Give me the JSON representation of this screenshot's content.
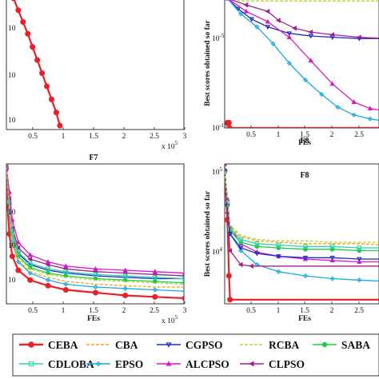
{
  "chart_data": [
    {
      "id": "top-left",
      "type": "line",
      "title": "",
      "xlabel": "",
      "ylabel": "",
      "x_multiplier": "x 10",
      "x_exponent": "5",
      "xticks": [
        "0.5",
        "1",
        "1.5",
        "2",
        "2.5",
        "3"
      ],
      "ytick_labels": [
        "10",
        "10",
        "10"
      ],
      "xlim": [
        0,
        3
      ],
      "series": [
        {
          "name": "CEBA",
          "color": "#e8202a",
          "marker": "circle",
          "x": [
            0.12,
            0.2,
            0.28,
            0.36,
            0.44,
            0.52,
            0.6,
            0.68,
            0.76,
            0.84,
            0.9
          ],
          "y": [
            0.0,
            0.09,
            0.18,
            0.27,
            0.37,
            0.47,
            0.57,
            0.67,
            0.77,
            0.87,
            0.97
          ]
        }
      ]
    },
    {
      "id": "top-right",
      "type": "line",
      "title": "F8",
      "xlabel": "FEs",
      "ylabel": "Best scores obtained so far",
      "xticks": [
        "0.5",
        "1",
        "1.5",
        "2",
        "2.5"
      ],
      "ytick_labels": [
        "10",
        "10"
      ],
      "ytick_exponents": [
        "-5",
        "-15"
      ],
      "xlim": [
        0,
        3
      ],
      "series": [
        {
          "name": "CEBA",
          "color": "#e8202a",
          "marker": "circle",
          "x": [
            0.05,
            0.08,
            0.09,
            3.0
          ],
          "y": [
            0.96,
            0.96,
            1.0,
            1.0
          ]
        },
        {
          "name": "CGPSO",
          "color": "#1f2bbf",
          "marker": "triangle-down",
          "x": [
            0.05,
            0.25,
            0.5,
            0.8,
            1.2,
            1.6,
            2.0,
            2.5,
            3.0
          ],
          "y": [
            0.0,
            0.08,
            0.16,
            0.22,
            0.27,
            0.29,
            0.3,
            0.31,
            0.31
          ]
        },
        {
          "name": "EPSO",
          "color": "#18a9df",
          "marker": "diamond",
          "x": [
            0.05,
            0.3,
            0.6,
            0.9,
            1.2,
            1.5,
            1.8,
            2.1,
            2.4,
            2.7,
            3.0
          ],
          "y": [
            0.0,
            0.12,
            0.22,
            0.35,
            0.5,
            0.63,
            0.74,
            0.84,
            0.9,
            0.93,
            0.95
          ]
        },
        {
          "name": "ALCPSO",
          "color": "#d61ac8",
          "marker": "triangle-up",
          "x": [
            0.05,
            0.4,
            0.8,
            1.2,
            1.6,
            2.0,
            2.4,
            2.7,
            3.0
          ],
          "y": [
            0.0,
            0.1,
            0.18,
            0.3,
            0.48,
            0.66,
            0.8,
            0.85,
            0.87
          ]
        },
        {
          "name": "CLPSO",
          "color": "#a2208f",
          "marker": "triangle-left",
          "x": [
            0.05,
            0.4,
            0.8,
            1.0,
            1.3,
            1.6,
            2.0,
            2.5,
            3.0
          ],
          "y": [
            0.0,
            0.05,
            0.1,
            0.17,
            0.23,
            0.26,
            0.28,
            0.3,
            0.31
          ]
        },
        {
          "name": "RCBA",
          "color": "#b5d23b",
          "marker": "none",
          "x": [
            0.05,
            0.3,
            0.8,
            1.5,
            2.2,
            3.0
          ],
          "y": [
            0.0,
            0.02,
            0.02,
            0.02,
            0.02,
            0.02
          ]
        }
      ]
    },
    {
      "id": "bottom-left",
      "type": "line",
      "title": "F7",
      "xlabel": "FEs",
      "ylabel": "",
      "x_multiplier": "x 10",
      "x_exponent": "5",
      "xticks": [
        "0.5",
        "1",
        "1.5",
        "2",
        "2.5",
        "3"
      ],
      "ytick_labels": [
        "10",
        "10",
        "10"
      ],
      "xlim": [
        0,
        3
      ],
      "series": [
        {
          "name": "CEBA",
          "color": "#e8202a",
          "marker": "circle",
          "x": [
            0.0,
            0.05,
            0.1,
            0.2,
            0.4,
            0.7,
            1.0,
            1.5,
            2.0,
            2.5,
            3.0
          ],
          "y": [
            0.18,
            0.5,
            0.66,
            0.76,
            0.83,
            0.87,
            0.9,
            0.92,
            0.94,
            0.95,
            0.96
          ]
        },
        {
          "name": "CGPSO",
          "color": "#1f2bbf",
          "marker": "triangle-down",
          "x": [
            0.0,
            0.05,
            0.1,
            0.2,
            0.4,
            0.7,
            1.0,
            1.5,
            2.0,
            2.5,
            3.0
          ],
          "y": [
            0.05,
            0.3,
            0.5,
            0.64,
            0.72,
            0.76,
            0.78,
            0.8,
            0.81,
            0.82,
            0.82
          ]
        },
        {
          "name": "CLPSO",
          "color": "#a2208f",
          "marker": "triangle-left",
          "x": [
            0.0,
            0.05,
            0.1,
            0.2,
            0.4,
            0.7,
            1.0,
            1.5,
            2.0,
            2.5,
            3.0
          ],
          "y": [
            0.03,
            0.25,
            0.46,
            0.6,
            0.68,
            0.72,
            0.75,
            0.77,
            0.78,
            0.79,
            0.8
          ]
        },
        {
          "name": "SABA",
          "color": "#22c94a",
          "marker": "circle",
          "x": [
            0.0,
            0.05,
            0.1,
            0.2,
            0.4,
            0.7,
            1.0,
            1.5,
            2.0,
            2.5,
            3.0
          ],
          "y": [
            0.02,
            0.28,
            0.5,
            0.66,
            0.74,
            0.78,
            0.8,
            0.82,
            0.83,
            0.84,
            0.85
          ]
        },
        {
          "name": "CDLOBA",
          "color": "#2fd6a8",
          "marker": "square",
          "x": [
            0.0,
            0.05,
            0.1,
            0.2,
            0.4,
            0.7,
            1.0,
            1.5,
            2.0,
            2.5,
            3.0
          ],
          "y": [
            0.02,
            0.27,
            0.48,
            0.63,
            0.71,
            0.75,
            0.77,
            0.79,
            0.8,
            0.81,
            0.82
          ]
        },
        {
          "name": "EPSO",
          "color": "#18a9df",
          "marker": "diamond",
          "x": [
            0.0,
            0.05,
            0.1,
            0.2,
            0.4,
            0.7,
            1.0,
            1.5,
            2.0,
            2.5,
            3.0
          ],
          "y": [
            0.02,
            0.35,
            0.56,
            0.7,
            0.78,
            0.83,
            0.86,
            0.88,
            0.89,
            0.9,
            0.91
          ]
        },
        {
          "name": "ALCPSO",
          "color": "#d61ac8",
          "marker": "triangle-up",
          "x": [
            0.0,
            0.05,
            0.1,
            0.2,
            0.4,
            0.7,
            1.0,
            1.5,
            2.0,
            2.5,
            3.0
          ],
          "y": [
            0.02,
            0.2,
            0.4,
            0.56,
            0.65,
            0.7,
            0.73,
            0.75,
            0.76,
            0.77,
            0.78
          ]
        },
        {
          "name": "RCBA",
          "color": "#b5d23b",
          "marker": "none",
          "x": [
            0.0,
            0.05,
            0.1,
            0.2,
            0.4,
            0.7,
            1.0,
            1.5,
            2.0,
            2.5,
            3.0
          ],
          "y": [
            0.02,
            0.3,
            0.52,
            0.67,
            0.75,
            0.79,
            0.81,
            0.83,
            0.84,
            0.85,
            0.86
          ]
        },
        {
          "name": "CBA",
          "color": "#f4a21b",
          "marker": "none",
          "x": [
            0.0,
            0.05,
            0.1,
            0.2,
            0.4,
            0.7,
            1.0,
            1.5,
            2.0,
            2.5,
            3.0
          ],
          "y": [
            0.02,
            0.32,
            0.54,
            0.69,
            0.77,
            0.81,
            0.84,
            0.86,
            0.87,
            0.88,
            0.88
          ]
        }
      ]
    },
    {
      "id": "bottom-right",
      "type": "line",
      "title": "F8",
      "xlabel": "FEs",
      "ylabel": "Best scores obtained so far",
      "xticks": [
        "0.5",
        "1",
        "1.5",
        "2",
        "2.5"
      ],
      "ytick_labels": [
        "10",
        "10"
      ],
      "ytick_exponents": [
        "5",
        "4"
      ],
      "xlim": [
        0,
        3
      ],
      "series": [
        {
          "name": "CEBA",
          "color": "#e8202a",
          "marker": "circle",
          "x": [
            0.0,
            0.05,
            0.08,
            0.1,
            3.0
          ],
          "y": [
            0.05,
            0.4,
            0.8,
            0.97,
            0.97
          ]
        },
        {
          "name": "EPSO",
          "color": "#18a9df",
          "marker": "diamond",
          "x": [
            0.0,
            0.05,
            0.1,
            0.3,
            0.6,
            1.0,
            1.5,
            2.0,
            2.5,
            3.0
          ],
          "y": [
            0.05,
            0.3,
            0.5,
            0.62,
            0.72,
            0.77,
            0.8,
            0.82,
            0.83,
            0.84
          ]
        },
        {
          "name": "ALCPSO",
          "color": "#d61ac8",
          "marker": "triangle-up",
          "x": [
            0.0,
            0.05,
            0.1,
            0.3,
            0.6,
            1.0,
            1.5,
            2.0,
            2.5,
            3.0
          ],
          "y": [
            0.05,
            0.25,
            0.45,
            0.57,
            0.63,
            0.66,
            0.68,
            0.69,
            0.7,
            0.7
          ]
        },
        {
          "name": "CLPSO",
          "color": "#a2208f",
          "marker": "triangle-left",
          "x": [
            0.0,
            0.05,
            0.1,
            0.3,
            0.5,
            3.0
          ],
          "y": [
            0.0,
            0.35,
            0.62,
            0.72,
            0.73,
            0.73
          ]
        },
        {
          "name": "SABA",
          "color": "#22c94a",
          "marker": "circle",
          "x": [
            0.0,
            0.05,
            0.1,
            0.3,
            0.6,
            1.0,
            1.5,
            2.0,
            2.5,
            3.0
          ],
          "y": [
            0.05,
            0.3,
            0.48,
            0.56,
            0.59,
            0.6,
            0.61,
            0.61,
            0.62,
            0.62
          ]
        },
        {
          "name": "CDLOBA",
          "color": "#2fd6a8",
          "marker": "square",
          "x": [
            0.0,
            0.05,
            0.1,
            0.3,
            0.6,
            1.0,
            1.5,
            2.0,
            2.5,
            3.0
          ],
          "y": [
            0.05,
            0.28,
            0.46,
            0.54,
            0.57,
            0.58,
            0.59,
            0.59,
            0.6,
            0.6
          ]
        },
        {
          "name": "CGPSO",
          "color": "#1f2bbf",
          "marker": "triangle-down",
          "x": [
            0.0,
            0.05,
            0.1,
            0.3,
            0.6,
            1.0,
            1.5,
            2.0,
            2.5,
            3.0
          ],
          "y": [
            0.05,
            0.3,
            0.5,
            0.6,
            0.64,
            0.66,
            0.67,
            0.67,
            0.68,
            0.68
          ]
        },
        {
          "name": "CBA",
          "color": "#f4a21b",
          "marker": "none",
          "x": [
            0.0,
            0.05,
            0.1,
            0.3,
            0.6,
            1.0,
            1.5,
            2.0,
            2.5,
            3.0
          ],
          "y": [
            0.05,
            0.27,
            0.45,
            0.52,
            0.55,
            0.56,
            0.57,
            0.57,
            0.57,
            0.58
          ]
        },
        {
          "name": "RCBA",
          "color": "#b5d23b",
          "marker": "none",
          "x": [
            0.0,
            0.05,
            0.1,
            0.3,
            0.6,
            1.0,
            1.5,
            2.0,
            2.5,
            3.0
          ],
          "y": [
            0.05,
            0.26,
            0.44,
            0.51,
            0.54,
            0.55,
            0.55,
            0.56,
            0.56,
            0.56
          ]
        }
      ]
    }
  ],
  "legend": {
    "items": [
      {
        "name": "CEBA",
        "color": "#e8202a",
        "marker": "circle"
      },
      {
        "name": "CBA",
        "color": "#f4a21b",
        "marker": "none"
      },
      {
        "name": "CGPSO",
        "color": "#1f2bbf",
        "marker": "triangle-down"
      },
      {
        "name": "RCBA",
        "color": "#b5d23b",
        "marker": "none"
      },
      {
        "name": "SABA",
        "color": "#22c94a",
        "marker": "circle"
      },
      {
        "name": "CDLOBA",
        "color": "#2fd6a8",
        "marker": "square"
      },
      {
        "name": "EPSO",
        "color": "#18a9df",
        "marker": "diamond"
      },
      {
        "name": "ALCPSO",
        "color": "#d61ac8",
        "marker": "triangle-up"
      },
      {
        "name": "CLPSO",
        "color": "#a2208f",
        "marker": "triangle-left"
      }
    ]
  }
}
